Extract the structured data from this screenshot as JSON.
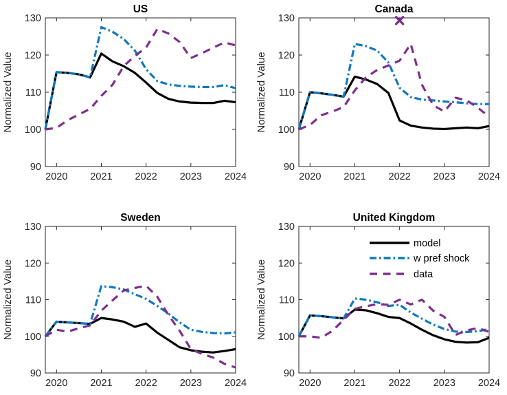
{
  "figure": {
    "background": "#ffffff",
    "axis_color": "#262626",
    "tick_label_color": "#262626",
    "ylabel": "Normalized Value",
    "x_tick_labels": [
      "2020",
      "2021",
      "2022",
      "2023",
      "2024"
    ],
    "x_tick_values": [
      2020,
      2021,
      2022,
      2023,
      2024
    ],
    "y_tick_labels": [
      "90",
      "100",
      "110",
      "120",
      "130"
    ],
    "y_tick_values": [
      90,
      100,
      110,
      120,
      130
    ],
    "xlim": [
      2019.75,
      2024
    ],
    "ylim": [
      90,
      130
    ],
    "series_styles": {
      "model": {
        "color": "#000000",
        "dash": "solid",
        "width": 3.2
      },
      "pref_shock": {
        "color": "#1178bd",
        "dash": "dashdot",
        "width": 3.2
      },
      "data": {
        "color": "#7e2f8e",
        "dash": "dashed",
        "width": 3.2
      }
    },
    "legend": {
      "location_panel": "United Kingdom",
      "entries": [
        {
          "key": "model",
          "label": "model"
        },
        {
          "key": "pref_shock",
          "label": "w pref shock"
        },
        {
          "key": "data",
          "label": "data"
        }
      ]
    }
  },
  "chart_data": [
    {
      "type": "line",
      "title": "US",
      "xlabel": "",
      "ylabel": "Normalized Value",
      "xlim": [
        2019.75,
        2024
      ],
      "ylim": [
        90,
        130
      ],
      "grid": false,
      "x": [
        2019.75,
        2020,
        2020.25,
        2020.5,
        2020.75,
        2021,
        2021.25,
        2021.5,
        2021.75,
        2022,
        2022.25,
        2022.5,
        2022.75,
        2023,
        2023.25,
        2023.5,
        2023.75,
        2024
      ],
      "series": [
        {
          "key": "model",
          "name": "model",
          "values": [
            100,
            115.4,
            115.2,
            114.8,
            114.0,
            120.4,
            118.3,
            117.0,
            115.2,
            112.6,
            109.8,
            108.2,
            107.5,
            107.2,
            107.1,
            107.1,
            107.7,
            107.3
          ]
        },
        {
          "key": "pref_shock",
          "name": "w pref shock",
          "values": [
            100,
            115.4,
            115.2,
            114.8,
            114.0,
            127.5,
            126.3,
            124.3,
            121.2,
            116.2,
            113.0,
            112.1,
            111.7,
            111.5,
            111.4,
            111.4,
            111.9,
            111.1
          ]
        },
        {
          "key": "data",
          "name": "data",
          "values": [
            100,
            100.4,
            102.5,
            104.0,
            105.5,
            109.0,
            112.0,
            117.0,
            119.8,
            122.0,
            127.0,
            125.8,
            123.5,
            119.2,
            120.5,
            122.0,
            123.4,
            122.6
          ]
        }
      ],
      "annotations": [],
      "show_legend": false
    },
    {
      "type": "line",
      "title": "Canada",
      "xlabel": "",
      "ylabel": "Normalized Value",
      "xlim": [
        2019.75,
        2024
      ],
      "ylim": [
        90,
        130
      ],
      "grid": false,
      "x": [
        2019.75,
        2020,
        2020.25,
        2020.5,
        2020.75,
        2021,
        2021.25,
        2021.5,
        2021.75,
        2022,
        2022.25,
        2022.5,
        2022.75,
        2023,
        2023.25,
        2023.5,
        2023.75,
        2024
      ],
      "series": [
        {
          "key": "model",
          "name": "model",
          "values": [
            100,
            110.0,
            109.7,
            109.3,
            108.8,
            114.2,
            113.4,
            112.2,
            109.8,
            102.4,
            101.0,
            100.5,
            100.2,
            100.1,
            100.3,
            100.5,
            100.3,
            100.9
          ]
        },
        {
          "key": "pref_shock",
          "name": "w pref shock",
          "values": [
            100,
            110.0,
            109.7,
            109.3,
            108.8,
            123.0,
            122.4,
            121.2,
            118.0,
            111.2,
            108.7,
            108.0,
            107.8,
            107.5,
            107.3,
            107.0,
            106.8,
            106.8
          ]
        },
        {
          "key": "data",
          "name": "data",
          "values": [
            100,
            101.2,
            103.8,
            104.8,
            106.0,
            110.5,
            114.0,
            116.0,
            117.2,
            118.5,
            123.0,
            112.0,
            106.5,
            104.8,
            108.5,
            107.8,
            105.8,
            103.4
          ]
        }
      ],
      "annotations": [
        {
          "x": 2022,
          "y": 129.3,
          "marker": "x",
          "series": "data",
          "color": "#7e2f8e"
        }
      ],
      "show_legend": false
    },
    {
      "type": "line",
      "title": "Sweden",
      "xlabel": "",
      "ylabel": "Normalized Value",
      "xlim": [
        2019.75,
        2024
      ],
      "ylim": [
        90,
        130
      ],
      "grid": false,
      "x": [
        2019.75,
        2020,
        2020.25,
        2020.5,
        2020.75,
        2021,
        2021.25,
        2021.5,
        2021.75,
        2022,
        2022.25,
        2022.5,
        2022.75,
        2023,
        2023.25,
        2023.5,
        2023.75,
        2024
      ],
      "series": [
        {
          "key": "model",
          "name": "model",
          "values": [
            100,
            104.0,
            103.8,
            103.6,
            103.4,
            105.0,
            104.6,
            104.0,
            102.6,
            103.5,
            101.0,
            99.0,
            97.0,
            96.2,
            95.8,
            95.6,
            96.0,
            96.5
          ]
        },
        {
          "key": "pref_shock",
          "name": "w pref shock",
          "values": [
            100,
            104.0,
            103.8,
            103.6,
            103.4,
            113.7,
            113.4,
            112.8,
            111.5,
            110.2,
            108.3,
            106.2,
            103.8,
            101.8,
            101.2,
            100.9,
            100.8,
            101.1
          ]
        },
        {
          "key": "data",
          "name": "data",
          "values": [
            100,
            101.8,
            101.3,
            102.2,
            103.0,
            107.0,
            109.8,
            112.5,
            113.2,
            113.8,
            110.8,
            105.8,
            101.5,
            96.5,
            95.2,
            94.2,
            92.5,
            91.5
          ]
        }
      ],
      "annotations": [],
      "show_legend": false
    },
    {
      "type": "line",
      "title": "United Kingdom",
      "xlabel": "",
      "ylabel": "Normalized Value",
      "xlim": [
        2019.75,
        2024
      ],
      "ylim": [
        90,
        130
      ],
      "grid": false,
      "x": [
        2019.75,
        2020,
        2020.25,
        2020.5,
        2020.75,
        2021,
        2021.25,
        2021.5,
        2021.75,
        2022,
        2022.25,
        2022.5,
        2022.75,
        2023,
        2023.25,
        2023.5,
        2023.75,
        2024
      ],
      "series": [
        {
          "key": "model",
          "name": "model",
          "values": [
            100,
            105.7,
            105.5,
            105.2,
            104.9,
            107.3,
            107.1,
            106.3,
            105.3,
            105.0,
            103.5,
            101.8,
            100.3,
            99.2,
            98.5,
            98.3,
            98.4,
            99.6
          ]
        },
        {
          "key": "pref_shock",
          "name": "w pref shock",
          "values": [
            100,
            105.7,
            105.5,
            105.2,
            104.9,
            110.3,
            110.0,
            109.3,
            108.3,
            108.6,
            106.5,
            104.8,
            103.2,
            102.0,
            101.3,
            101.2,
            101.4,
            102.0
          ]
        },
        {
          "key": "data",
          "name": "data",
          "values": [
            100,
            100.0,
            99.6,
            101.5,
            104.5,
            107.5,
            108.2,
            108.8,
            108.6,
            110.0,
            108.7,
            110.0,
            107.0,
            105.3,
            100.4,
            101.6,
            102.3,
            101.2
          ]
        }
      ],
      "annotations": [],
      "show_legend": true
    }
  ]
}
